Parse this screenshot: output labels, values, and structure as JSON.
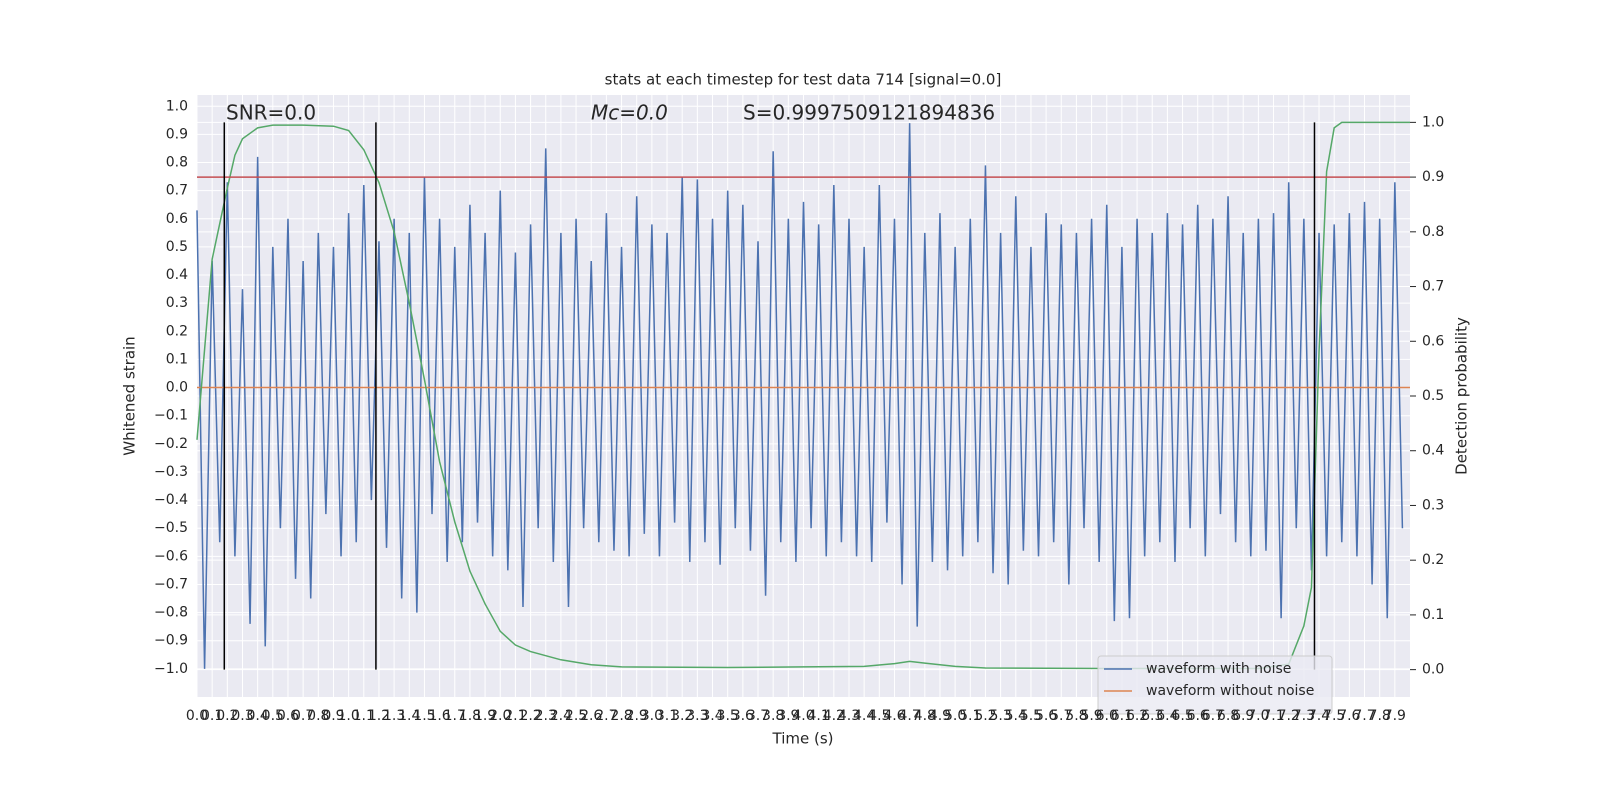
{
  "chart_data": {
    "type": "line",
    "title": "stats at each timestep for test data 714 [signal=0.0]",
    "xlabel": "Time (s)",
    "ylabel": "Whitened strain",
    "y2label": "Detection probability",
    "annotations": [
      "SNR=0.0",
      "Mc=0.0",
      "S=0.9997509121894836"
    ],
    "xlim": [
      0,
      8.0
    ],
    "ylim": [
      -1.1,
      1.04
    ],
    "y2lim": [
      -0.05,
      1.05
    ],
    "grid": true,
    "legend": "lower right",
    "xticks": [
      {
        "value": 0,
        "label": "0.0"
      },
      0.1,
      0.2,
      0.3,
      0.4,
      0.5,
      0.6,
      0.7,
      0.8,
      0.9,
      {
        "value": 1,
        "label": "1.0"
      },
      1.1,
      1.2,
      1.3,
      1.4,
      1.5,
      1.6,
      1.7,
      1.8,
      1.9,
      {
        "value": 2,
        "label": "2.0"
      },
      2.1,
      2.2,
      2.3,
      2.4,
      2.5,
      2.6,
      2.7,
      2.8,
      2.9,
      {
        "value": 3,
        "label": "3.0"
      },
      3.1,
      3.2,
      3.3,
      3.4,
      3.5,
      3.6,
      3.7,
      3.8,
      3.9,
      {
        "value": 4,
        "label": "4.0"
      },
      4.1,
      4.2,
      4.3,
      4.4,
      4.5,
      4.6,
      4.7,
      4.8,
      4.9,
      {
        "value": 5,
        "label": "5.0"
      },
      5.1,
      5.2,
      5.3,
      5.4,
      5.5,
      5.6,
      5.7,
      5.8,
      5.9,
      {
        "value": 6,
        "label": "6.0"
      },
      6.1,
      6.2,
      6.3,
      6.4,
      6.5,
      6.6,
      6.7,
      6.8,
      6.9,
      {
        "value": 7,
        "label": "7.0"
      },
      7.1,
      7.2,
      7.3,
      7.4,
      7.5,
      7.6,
      7.7,
      7.8,
      7.9
    ],
    "yticks": [
      {
        "value": -1.0,
        "label": "−1.0"
      },
      {
        "value": -0.9,
        "label": "−0.9"
      },
      {
        "value": -0.8,
        "label": "−0.8"
      },
      {
        "value": -0.7,
        "label": "−0.7"
      },
      {
        "value": -0.6,
        "label": "−0.6"
      },
      {
        "value": -0.5,
        "label": "−0.5"
      },
      {
        "value": -0.4,
        "label": "−0.4"
      },
      {
        "value": -0.3,
        "label": "−0.3"
      },
      {
        "value": -0.2,
        "label": "−0.2"
      },
      {
        "value": -0.1,
        "label": "−0.1"
      },
      {
        "value": 0,
        "label": "0.0"
      },
      0.1,
      0.2,
      0.3,
      0.4,
      0.5,
      0.6,
      0.7,
      0.8,
      0.9,
      {
        "value": 1,
        "label": "1.0"
      }
    ],
    "y2ticks": [
      {
        "value": 0,
        "label": "0.0"
      },
      0.1,
      0.2,
      0.3,
      0.4,
      0.5,
      0.6,
      0.7,
      0.8,
      0.9,
      {
        "value": 1,
        "label": "1.0"
      }
    ],
    "series": [
      {
        "name": "waveform with noise",
        "color": "#4c72b0",
        "x": [
          0.0,
          0.05,
          0.1,
          0.15,
          0.2,
          0.25,
          0.3,
          0.35,
          0.4,
          0.45,
          0.5,
          0.55,
          0.6,
          0.65,
          0.7,
          0.75,
          0.8,
          0.85,
          0.9,
          0.95,
          1.0,
          1.05,
          1.1,
          1.15,
          1.2,
          1.25,
          1.3,
          1.35,
          1.4,
          1.45,
          1.5,
          1.55,
          1.6,
          1.65,
          1.7,
          1.75,
          1.8,
          1.85,
          1.9,
          1.95,
          2.0,
          2.05,
          2.1,
          2.15,
          2.2,
          2.25,
          2.3,
          2.35,
          2.4,
          2.45,
          2.5,
          2.55,
          2.6,
          2.65,
          2.7,
          2.75,
          2.8,
          2.85,
          2.9,
          2.95,
          3.0,
          3.05,
          3.1,
          3.15,
          3.2,
          3.25,
          3.3,
          3.35,
          3.4,
          3.45,
          3.5,
          3.55,
          3.6,
          3.65,
          3.7,
          3.75,
          3.8,
          3.85,
          3.9,
          3.95,
          4.0,
          4.05,
          4.1,
          4.15,
          4.2,
          4.25,
          4.3,
          4.35,
          4.4,
          4.45,
          4.5,
          4.55,
          4.6,
          4.65,
          4.7,
          4.75,
          4.8,
          4.85,
          4.9,
          4.95,
          5.0,
          5.05,
          5.1,
          5.15,
          5.2,
          5.25,
          5.3,
          5.35,
          5.4,
          5.45,
          5.5,
          5.55,
          5.6,
          5.65,
          5.7,
          5.75,
          5.8,
          5.85,
          5.9,
          5.95,
          6.0,
          6.05,
          6.1,
          6.15,
          6.2,
          6.25,
          6.3,
          6.35,
          6.4,
          6.45,
          6.5,
          6.55,
          6.6,
          6.65,
          6.7,
          6.75,
          6.8,
          6.85,
          6.9,
          6.95,
          7.0,
          7.05,
          7.1,
          7.15,
          7.2,
          7.25,
          7.3,
          7.35,
          7.4,
          7.45,
          7.5,
          7.55,
          7.6,
          7.65,
          7.7,
          7.75,
          7.8,
          7.85,
          7.9,
          7.95
        ],
        "values": [
          0.63,
          -1.0,
          0.45,
          -0.55,
          0.73,
          -0.6,
          0.35,
          -0.84,
          0.82,
          -0.92,
          0.5,
          -0.5,
          0.6,
          -0.68,
          0.45,
          -0.75,
          0.55,
          -0.45,
          0.5,
          -0.6,
          0.62,
          -0.55,
          0.72,
          -0.4,
          0.52,
          -0.57,
          0.6,
          -0.75,
          0.55,
          -0.8,
          0.75,
          -0.45,
          0.6,
          -0.62,
          0.5,
          -0.55,
          0.65,
          -0.48,
          0.55,
          -0.6,
          0.7,
          -0.65,
          0.48,
          -0.78,
          0.58,
          -0.5,
          0.85,
          -0.62,
          0.55,
          -0.78,
          0.6,
          -0.5,
          0.45,
          -0.55,
          0.62,
          -0.58,
          0.5,
          -0.6,
          0.68,
          -0.52,
          0.58,
          -0.6,
          0.55,
          -0.48,
          0.75,
          -0.62,
          0.74,
          -0.55,
          0.6,
          -0.63,
          0.7,
          -0.5,
          0.65,
          -0.58,
          0.52,
          -0.74,
          0.84,
          -0.55,
          0.6,
          -0.62,
          0.66,
          -0.5,
          0.58,
          -0.6,
          0.72,
          -0.55,
          0.6,
          -0.6,
          0.5,
          -0.62,
          0.72,
          -0.48,
          0.6,
          -0.7,
          0.94,
          -0.85,
          0.55,
          -0.62,
          0.62,
          -0.65,
          0.5,
          -0.6,
          0.6,
          -0.55,
          0.79,
          -0.66,
          0.55,
          -0.7,
          0.68,
          -0.58,
          0.5,
          -0.6,
          0.62,
          -0.55,
          0.58,
          -0.7,
          0.55,
          -0.5,
          0.6,
          -0.62,
          0.65,
          -0.83,
          0.5,
          -0.82,
          0.6,
          -0.6,
          0.55,
          -0.55,
          0.62,
          -0.62,
          0.58,
          -0.5,
          0.65,
          -0.6,
          0.6,
          -0.45,
          0.68,
          -0.55,
          0.55,
          -0.6,
          0.6,
          -0.58,
          0.62,
          -0.82,
          0.73,
          -0.5,
          0.6,
          -0.65,
          0.55,
          -0.6,
          0.58,
          -0.55,
          0.62,
          -0.6,
          0.66,
          -0.7,
          0.6,
          -0.82,
          0.73,
          -0.5
        ]
      },
      {
        "name": "waveform without noise",
        "color": "#dd8452",
        "x": [
          0.0,
          8.0
        ],
        "values": [
          0,
          0
        ]
      },
      {
        "color": "#55a868",
        "axis": "y2",
        "x": [
          0.0,
          0.1,
          0.2,
          0.25,
          0.3,
          0.4,
          0.5,
          0.7,
          0.9,
          1.0,
          1.1,
          1.2,
          1.3,
          1.4,
          1.5,
          1.6,
          1.7,
          1.8,
          1.9,
          2.0,
          2.1,
          2.2,
          2.4,
          2.6,
          2.8,
          3.5,
          4.0,
          4.4,
          4.6,
          4.7,
          4.8,
          5.0,
          5.2,
          6.0,
          7.0,
          7.2,
          7.3,
          7.35,
          7.4,
          7.45,
          7.5,
          7.55,
          7.9,
          8.0
        ],
        "values": [
          0.42,
          0.75,
          0.88,
          0.94,
          0.97,
          0.99,
          0.995,
          0.995,
          0.993,
          0.985,
          0.95,
          0.89,
          0.8,
          0.67,
          0.53,
          0.38,
          0.27,
          0.18,
          0.12,
          0.07,
          0.045,
          0.033,
          0.018,
          0.009,
          0.005,
          0.004,
          0.005,
          0.006,
          0.011,
          0.015,
          0.012,
          0.006,
          0.003,
          0.002,
          0.002,
          0.01,
          0.08,
          0.15,
          0.58,
          0.91,
          0.99,
          1.0,
          1.0,
          1.0
        ]
      }
    ],
    "hlines": [
      {
        "y": 0.9,
        "axis": "y2",
        "color": "#c44e52"
      }
    ],
    "vlines": [
      {
        "x": 0.18,
        "ymin": 0,
        "ymax": 1,
        "axis": "y2",
        "color": "#000000"
      },
      {
        "x": 1.18,
        "ymin": 0,
        "ymax": 1,
        "axis": "y2",
        "color": "#000000"
      },
      {
        "x": 7.37,
        "ymin": 0,
        "ymax": 1,
        "axis": "y2",
        "color": "#000000"
      }
    ]
  }
}
